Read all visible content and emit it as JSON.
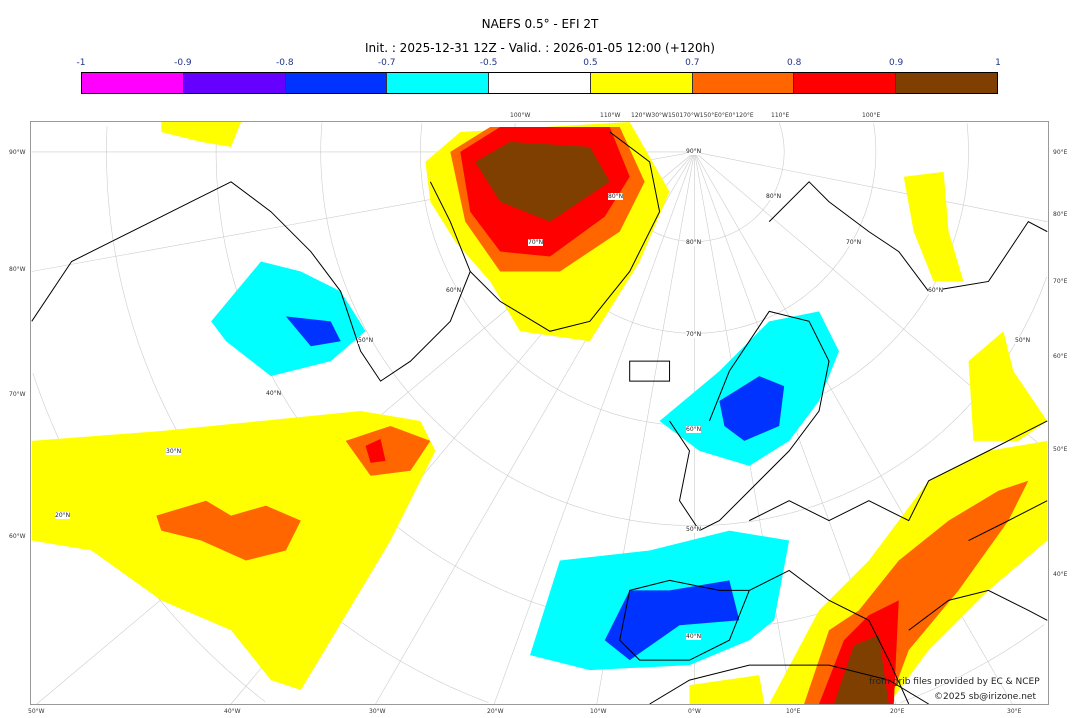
{
  "title": "NAEFS 0.5° - EFI 2T",
  "subtitle": "Init. : 2025-12-31 12Z - Valid. : 2026-01-05 12:00 (+120h)",
  "colorbar": {
    "ticks": [
      "-1",
      "-0.9",
      "-0.8",
      "-0.7",
      "-0.5",
      "0.5",
      "0.7",
      "0.8",
      "0.9",
      "1"
    ],
    "colors": [
      "#ff00ff",
      "#6600ff",
      "#0033ff",
      "#00ffff",
      "#ffffff",
      "#ffff00",
      "#ff6600",
      "#ff0000",
      "#7f3f00"
    ]
  },
  "axes": {
    "left": [
      "90°W",
      "80°W",
      "70°W",
      "60°W"
    ],
    "right": [
      "90°E",
      "80°E",
      "70°E",
      "60°E",
      "50°E",
      "40°E"
    ],
    "bottom": [
      "50°W",
      "40°W",
      "30°W",
      "20°W",
      "10°W",
      "0°W",
      "10°E",
      "20°E",
      "30°E"
    ],
    "top": [
      "100°W",
      "110°W",
      "120°W30°W150170°W150°E0°E0°120°E",
      "110°E",
      "100°E"
    ]
  },
  "latlabels": {
    "center": [
      "90°N",
      "80°N",
      "70°N",
      "60°N",
      "50°N",
      "40°N"
    ],
    "east": [
      "80°N",
      "70°N",
      "60°N",
      "50°N"
    ],
    "west": [
      "80°N",
      "70°N",
      "60°N",
      "50°N",
      "40°N",
      "30°N",
      "20°N"
    ]
  },
  "credits": {
    "source": "from grib files provided by EC & NCEP",
    "copyright": "©2025 sb@irizone.net"
  }
}
